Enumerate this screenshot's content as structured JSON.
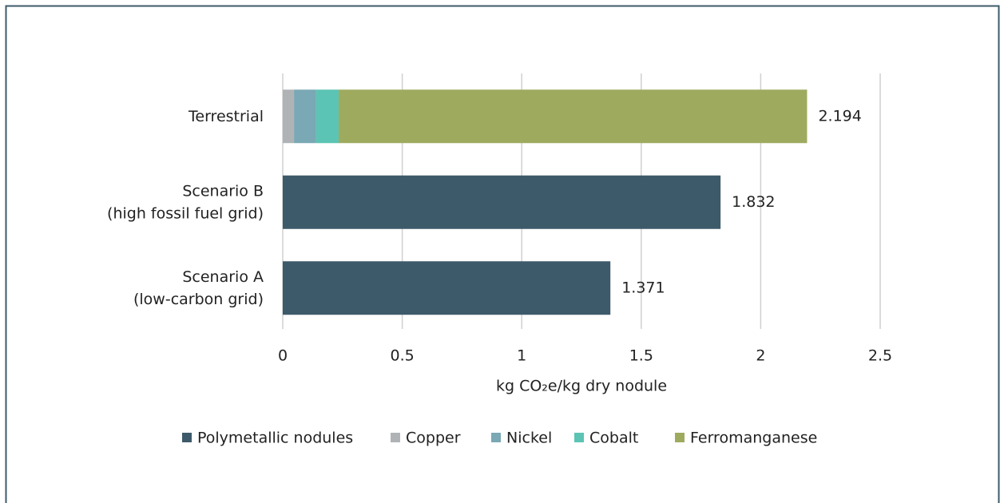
{
  "chart_data": {
    "type": "stacked_bar_horizontal",
    "categories": [
      "Terrestrial",
      "Scenario B\n(high fossil fuel grid)",
      "Scenario A\n(low-carbon grid)"
    ],
    "series": [
      {
        "name": "Polymetallic nodules",
        "color": "#3d5a6a",
        "values": [
          null,
          1.832,
          1.371
        ]
      },
      {
        "name": "Copper",
        "color": "#b0b3b6",
        "values": [
          0.047,
          null,
          null
        ]
      },
      {
        "name": "Nickel",
        "color": "#7aa8b4",
        "values": [
          0.093,
          null,
          null
        ]
      },
      {
        "name": "Cobalt",
        "color": "#5bc4b4",
        "values": [
          0.094,
          null,
          null
        ]
      },
      {
        "name": "Ferromanganese",
        "color": "#9eab5f",
        "values": [
          1.96,
          null,
          null
        ]
      }
    ],
    "totals": [
      2.194,
      1.832,
      1.371
    ],
    "xlabel": "kg CO₂e/kg dry nodule",
    "xlim": [
      0,
      2.5
    ],
    "xticks": [
      0,
      0.5,
      1,
      1.5,
      2,
      2.5
    ],
    "grid": true,
    "legend": "bottom"
  }
}
